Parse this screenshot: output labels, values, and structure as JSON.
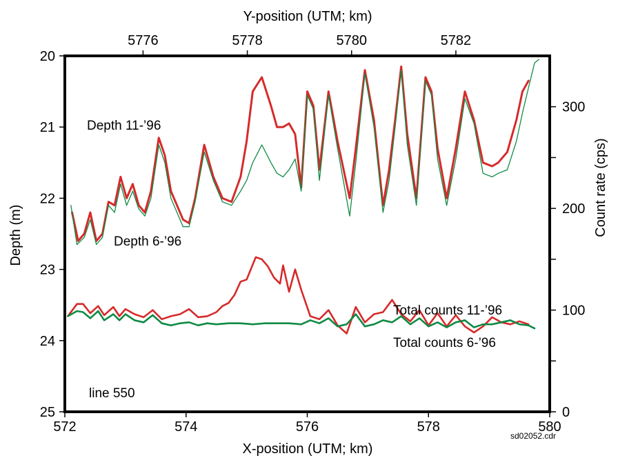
{
  "chart_data": {
    "type": "line",
    "x_axis": {
      "label": "X-position (UTM; km)",
      "range": [
        572,
        580
      ],
      "ticks": [
        572,
        574,
        576,
        578,
        580
      ],
      "tick_labels": [
        "572",
        "574",
        "576",
        "578",
        "580"
      ]
    },
    "top_axis": {
      "label": "Y-position (UTM; km)",
      "range": [
        5774.5,
        5783.8
      ],
      "ticks": [
        5776,
        5778,
        5780,
        5782
      ],
      "tick_labels": [
        "5776",
        "5778",
        "5780",
        "5782"
      ]
    },
    "left_axis": {
      "label": "Depth (m)",
      "range": [
        20,
        25
      ],
      "inverted": true,
      "ticks": [
        20,
        21,
        22,
        23,
        24,
        25
      ],
      "tick_labels": [
        "20",
        "21",
        "22",
        "23",
        "24",
        "25"
      ]
    },
    "right_axis": {
      "label": "Count rate (cps)",
      "range": [
        0,
        350
      ],
      "ticks": [
        0,
        50,
        100,
        150,
        200,
        250,
        300
      ],
      "tick_labels": [
        "0",
        "",
        "100",
        "",
        "200",
        "",
        "300"
      ]
    },
    "annotations": {
      "depth_nov": "Depth 11-’96",
      "depth_jun": "Depth 6-’96",
      "counts_nov": "Total counts 11-’96",
      "counts_jun": "Total counts 6-’96",
      "line_id": "line 550",
      "file_note": "sd02052.cdr"
    },
    "colors": {
      "red": "#d62a2a",
      "green": "#0e8a44",
      "frame": "#000000"
    },
    "series": [
      {
        "axis": "left",
        "color": "#d62a2a",
        "x": [
          572.12,
          572.22,
          572.32,
          572.42,
          572.52,
          572.62,
          572.72,
          572.82,
          572.92,
          573.02,
          573.12,
          573.22,
          573.32,
          573.42,
          573.55,
          573.65,
          573.75,
          573.85,
          573.95,
          574.05,
          574.15,
          574.3,
          574.45,
          574.6,
          574.75,
          574.9,
          575.0,
          575.1,
          575.25,
          575.4,
          575.5,
          575.6,
          575.7,
          575.8,
          575.9,
          576.0,
          576.1,
          576.2,
          576.35,
          576.5,
          576.7,
          576.8,
          576.95,
          577.1,
          577.25,
          577.35,
          577.45,
          577.55,
          577.65,
          577.8,
          577.95,
          578.05,
          578.15,
          578.3,
          578.45,
          578.6,
          578.75,
          578.9,
          579.05,
          579.15,
          579.3,
          579.45,
          579.55,
          579.65
        ],
        "y": [
          22.2,
          22.6,
          22.5,
          22.2,
          22.6,
          22.5,
          22.05,
          22.1,
          21.7,
          22.0,
          21.8,
          22.1,
          22.2,
          21.9,
          21.15,
          21.4,
          21.9,
          22.1,
          22.3,
          22.35,
          22.0,
          21.25,
          21.7,
          22.0,
          22.05,
          21.7,
          21.2,
          20.5,
          20.3,
          20.7,
          21.0,
          21.0,
          20.95,
          21.1,
          21.85,
          20.5,
          20.7,
          21.6,
          20.5,
          21.2,
          22.0,
          21.3,
          20.2,
          20.9,
          22.1,
          21.6,
          20.9,
          20.15,
          21.1,
          22.0,
          20.3,
          20.5,
          21.3,
          22.0,
          21.3,
          20.5,
          20.9,
          21.5,
          21.55,
          21.5,
          21.35,
          20.9,
          20.5,
          20.35
        ]
      },
      {
        "axis": "left",
        "color": "#0e8a44",
        "x": [
          572.1,
          572.2,
          572.32,
          572.42,
          572.52,
          572.62,
          572.72,
          572.82,
          572.92,
          573.02,
          573.12,
          573.22,
          573.32,
          573.42,
          573.55,
          573.65,
          573.75,
          573.85,
          573.95,
          574.05,
          574.15,
          574.3,
          574.45,
          574.6,
          574.75,
          574.9,
          575.0,
          575.1,
          575.25,
          575.4,
          575.5,
          575.6,
          575.7,
          575.8,
          575.9,
          576.0,
          576.1,
          576.2,
          576.35,
          576.5,
          576.7,
          576.8,
          576.95,
          577.1,
          577.25,
          577.35,
          577.45,
          577.55,
          577.65,
          577.8,
          577.95,
          578.05,
          578.15,
          578.3,
          578.45,
          578.6,
          578.75,
          578.9,
          579.05,
          579.15,
          579.3,
          579.45,
          579.55,
          579.65,
          579.75,
          579.82
        ],
        "y": [
          22.1,
          22.65,
          22.55,
          22.3,
          22.65,
          22.55,
          22.1,
          22.2,
          21.8,
          22.1,
          21.9,
          22.15,
          22.25,
          22.0,
          21.25,
          21.5,
          22.0,
          22.2,
          22.4,
          22.4,
          22.05,
          21.35,
          21.75,
          22.05,
          22.1,
          21.9,
          21.75,
          21.5,
          21.25,
          21.5,
          21.65,
          21.7,
          21.6,
          21.45,
          21.9,
          20.55,
          20.75,
          21.75,
          20.55,
          21.3,
          22.25,
          21.5,
          20.25,
          21.0,
          22.2,
          21.75,
          21.0,
          20.2,
          21.25,
          22.1,
          20.35,
          20.55,
          21.45,
          22.1,
          21.45,
          20.6,
          20.95,
          21.65,
          21.7,
          21.65,
          21.6,
          21.2,
          20.8,
          20.45,
          20.1,
          20.05
        ]
      },
      {
        "axis": "right",
        "color": "#d62a2a",
        "x": [
          572.05,
          572.2,
          572.3,
          572.42,
          572.55,
          572.65,
          572.8,
          572.9,
          573.0,
          573.15,
          573.3,
          573.45,
          573.6,
          573.75,
          573.9,
          574.05,
          574.2,
          574.35,
          574.5,
          574.6,
          574.7,
          574.8,
          574.9,
          575.0,
          575.15,
          575.25,
          575.35,
          575.45,
          575.55,
          575.6,
          575.7,
          575.8,
          575.9,
          576.05,
          576.2,
          576.35,
          576.5,
          576.65,
          576.8,
          576.95,
          577.1,
          577.25,
          577.4,
          577.55,
          577.7,
          577.85,
          578.0,
          578.15,
          578.3,
          578.45,
          578.6,
          578.75,
          578.9,
          579.05,
          579.2,
          579.35,
          579.5,
          579.65
        ],
        "y": [
          94,
          106,
          106,
          97,
          104,
          95,
          103,
          94,
          101,
          96,
          93,
          100,
          91,
          94,
          96,
          101,
          93,
          94,
          98,
          104,
          107,
          115,
          128,
          130,
          152,
          150,
          143,
          132,
          126,
          144,
          118,
          140,
          120,
          94,
          91,
          100,
          85,
          77,
          103,
          88,
          96,
          98,
          110,
          96,
          89,
          100,
          85,
          97,
          84,
          95,
          84,
          78,
          84,
          93,
          88,
          86,
          89,
          86
        ]
      },
      {
        "axis": "right",
        "color": "#0e8a44",
        "x": [
          572.05,
          572.2,
          572.3,
          572.42,
          572.55,
          572.65,
          572.8,
          572.9,
          573.0,
          573.15,
          573.3,
          573.45,
          573.6,
          573.75,
          573.9,
          574.05,
          574.2,
          574.35,
          574.5,
          574.7,
          574.9,
          575.1,
          575.3,
          575.5,
          575.7,
          575.9,
          576.05,
          576.2,
          576.35,
          576.5,
          576.65,
          576.8,
          576.95,
          577.1,
          577.25,
          577.4,
          577.55,
          577.7,
          577.85,
          578.0,
          578.15,
          578.3,
          578.45,
          578.6,
          578.75,
          578.9,
          579.05,
          579.2,
          579.35,
          579.5,
          579.65,
          579.75
        ],
        "y": [
          94,
          99,
          98,
          92,
          99,
          90,
          96,
          90,
          96,
          90,
          88,
          95,
          87,
          85,
          87,
          88,
          85,
          87,
          86,
          87,
          87,
          86,
          87,
          87,
          87,
          86,
          90,
          87,
          92,
          84,
          86,
          96,
          84,
          86,
          90,
          88,
          94,
          86,
          92,
          84,
          88,
          83,
          88,
          90,
          83,
          86,
          86,
          88,
          90,
          86,
          85,
          82
        ]
      }
    ]
  }
}
